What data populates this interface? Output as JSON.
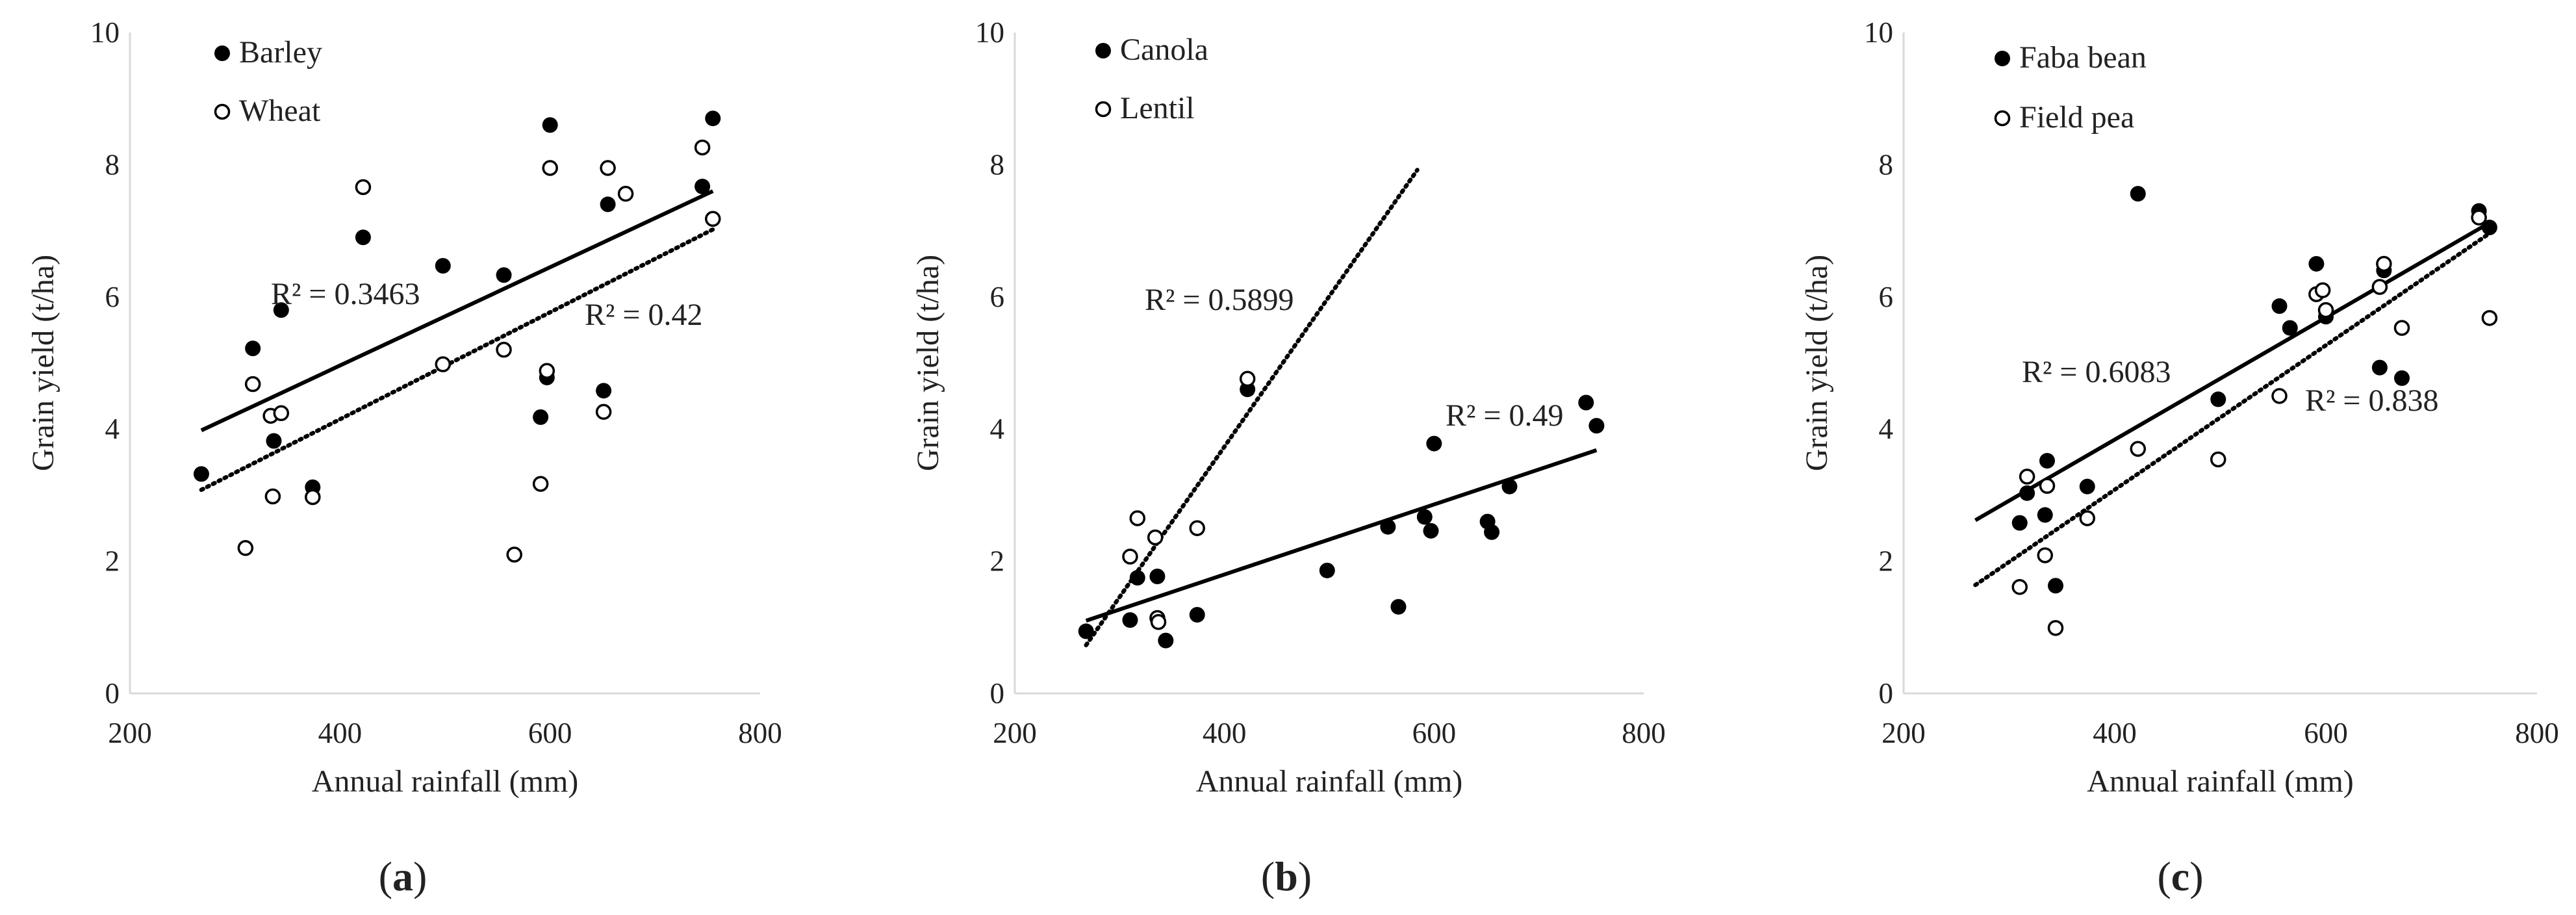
{
  "chart_data": [
    {
      "type": "scatter",
      "panel_label": {
        "open": "(",
        "letter": "a",
        "close": ")"
      },
      "xlabel": "Annual rainfall (mm)",
      "ylabel": "Grain yield (t/ha)",
      "xlim": [
        200,
        800
      ],
      "ylim": [
        0,
        10
      ],
      "xticks": [
        200,
        400,
        600,
        800
      ],
      "yticks": [
        0,
        2,
        4,
        6,
        8,
        10
      ],
      "legend_position": "top-left",
      "series": [
        {
          "name": "Barley",
          "marker": "filled-circle",
          "points": [
            [
              268,
              3.32
            ],
            [
              317,
              5.22
            ],
            [
              337,
              3.82
            ],
            [
              344,
              5.8
            ],
            [
              374,
              3.12
            ],
            [
              422,
              6.9
            ],
            [
              498,
              6.47
            ],
            [
              556,
              6.33
            ],
            [
              591,
              4.18
            ],
            [
              597,
              4.78
            ],
            [
              600,
              8.6
            ],
            [
              651,
              4.58
            ],
            [
              655,
              7.4
            ],
            [
              745,
              7.67
            ],
            [
              755,
              8.7
            ]
          ],
          "trendline": {
            "style": "solid",
            "x": [
              268,
              755
            ],
            "y": [
              3.98,
              7.6
            ]
          },
          "r2_label": "R² = 0.3463"
        },
        {
          "name": "Wheat",
          "marker": "open-circle",
          "points": [
            [
              310,
              2.2
            ],
            [
              317,
              4.68
            ],
            [
              334,
              4.2
            ],
            [
              336,
              2.98
            ],
            [
              344,
              4.24
            ],
            [
              374,
              2.97
            ],
            [
              422,
              7.66
            ],
            [
              498,
              4.98
            ],
            [
              556,
              5.2
            ],
            [
              566,
              2.1
            ],
            [
              591,
              3.17
            ],
            [
              597,
              4.88
            ],
            [
              600,
              7.95
            ],
            [
              651,
              4.26
            ],
            [
              655,
              7.95
            ],
            [
              672,
              7.56
            ],
            [
              745,
              8.26
            ],
            [
              755,
              7.18
            ]
          ],
          "trendline": {
            "style": "dotted",
            "x": [
              268,
              755
            ],
            "y": [
              3.08,
              7.02
            ]
          },
          "r2_label": "R² = 0.42"
        }
      ]
    },
    {
      "type": "scatter",
      "panel_label": {
        "open": "(",
        "letter": "b",
        "close": ")"
      },
      "xlabel": "Annual rainfall (mm)",
      "ylabel": "Grain yield (t/ha)",
      "xlim": [
        200,
        800
      ],
      "ylim": [
        0,
        10
      ],
      "xticks": [
        200,
        400,
        600,
        800
      ],
      "yticks": [
        0,
        2,
        4,
        6,
        8,
        10
      ],
      "legend_position": "top-left",
      "series": [
        {
          "name": "Canola",
          "marker": "filled-circle",
          "points": [
            [
              268,
              0.94
            ],
            [
              310,
              1.11
            ],
            [
              317,
              1.75
            ],
            [
              336,
              1.77
            ],
            [
              344,
              0.8
            ],
            [
              374,
              1.19
            ],
            [
              422,
              4.6
            ],
            [
              498,
              1.86
            ],
            [
              556,
              2.52
            ],
            [
              566,
              1.31
            ],
            [
              591,
              2.67
            ],
            [
              597,
              2.46
            ],
            [
              600,
              3.78
            ],
            [
              651,
              2.6
            ],
            [
              655,
              2.44
            ],
            [
              672,
              3.13
            ],
            [
              745,
              4.4
            ],
            [
              755,
              4.05
            ]
          ],
          "trendline": {
            "style": "solid",
            "x": [
              268,
              755
            ],
            "y": [
              1.1,
              3.68
            ]
          },
          "r2_label": "R² = 0.49"
        },
        {
          "name": "Lentil",
          "marker": "open-circle",
          "points": [
            [
              310,
              2.07
            ],
            [
              317,
              2.65
            ],
            [
              334,
              2.36
            ],
            [
              336,
              1.14
            ],
            [
              337,
              1.08
            ],
            [
              374,
              2.5
            ],
            [
              422,
              4.76
            ]
          ],
          "trendline": {
            "style": "dotted",
            "x": [
              268,
              584
            ],
            "y": [
              0.73,
              7.92
            ]
          },
          "r2_label": "R² = 0.5899"
        }
      ]
    },
    {
      "type": "scatter",
      "panel_label": {
        "open": "(",
        "letter": "c",
        "close": ")"
      },
      "xlabel": "Annual rainfall (mm)",
      "ylabel": "Grain yield (t/ha)",
      "xlim": [
        200,
        800
      ],
      "ylim": [
        0,
        10
      ],
      "xticks": [
        200,
        400,
        600,
        800
      ],
      "yticks": [
        0,
        2,
        4,
        6,
        8,
        10
      ],
      "legend_position": "top-left",
      "series": [
        {
          "name": "Faba bean",
          "marker": "filled-circle",
          "points": [
            [
              310,
              2.58
            ],
            [
              317,
              3.03
            ],
            [
              334,
              2.7
            ],
            [
              336,
              3.52
            ],
            [
              344,
              1.63
            ],
            [
              374,
              3.13
            ],
            [
              422,
              7.56
            ],
            [
              498,
              4.45
            ],
            [
              556,
              5.86
            ],
            [
              566,
              5.53
            ],
            [
              591,
              6.5
            ],
            [
              600,
              5.7
            ],
            [
              651,
              4.93
            ],
            [
              655,
              6.4
            ],
            [
              672,
              4.77
            ],
            [
              745,
              7.3
            ],
            [
              755,
              7.05
            ]
          ],
          "trendline": {
            "style": "solid",
            "x": [
              268,
              755
            ],
            "y": [
              2.62,
              7.12
            ]
          },
          "r2_label": "R² = 0.6083"
        },
        {
          "name": "Field pea",
          "marker": "open-circle",
          "points": [
            [
              310,
              1.61
            ],
            [
              317,
              3.28
            ],
            [
              334,
              2.09
            ],
            [
              336,
              3.14
            ],
            [
              344,
              0.99
            ],
            [
              374,
              2.65
            ],
            [
              422,
              3.7
            ],
            [
              498,
              3.54
            ],
            [
              556,
              4.5
            ],
            [
              591,
              6.04
            ],
            [
              597,
              6.1
            ],
            [
              600,
              5.8
            ],
            [
              651,
              6.15
            ],
            [
              655,
              6.5
            ],
            [
              672,
              5.53
            ],
            [
              745,
              7.2
            ],
            [
              755,
              5.68
            ]
          ],
          "trendline": {
            "style": "dotted",
            "x": [
              268,
              755
            ],
            "y": [
              1.64,
              6.96
            ]
          },
          "r2_label": "R² = 0.838"
        }
      ]
    }
  ]
}
